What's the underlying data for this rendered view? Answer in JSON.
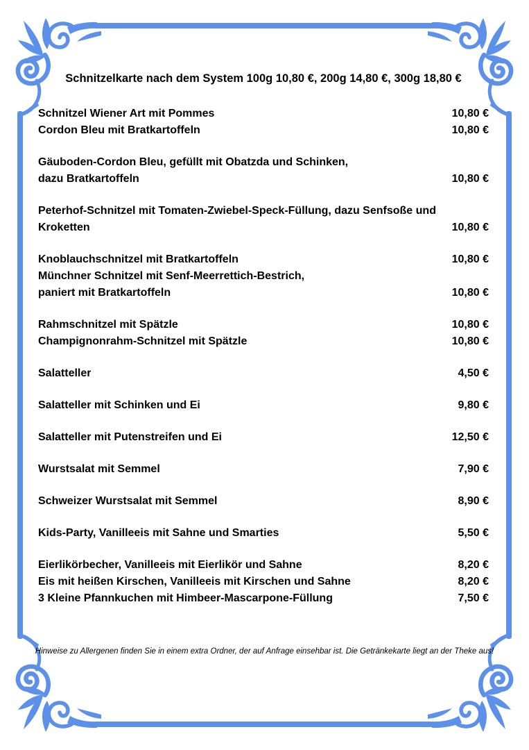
{
  "page": {
    "title": "Schnitzelkarte nach dem System 100g 10,80 €, 200g 14,80 €, 300g 18,80 €",
    "footer": "Hinweise zu Allergenen finden Sie in einem extra Ordner, der auf Anfrage einsehbar ist. Die Getränkekarte liegt an der Theke aus!"
  },
  "theme": {
    "accent_blue": "#5d90e8",
    "text_color": "#000000",
    "background": "#ffffff"
  },
  "icons": [
    "corner-flourish-top-left",
    "corner-flourish-top-right",
    "corner-flourish-bottom-left",
    "corner-flourish-bottom-right"
  ],
  "menu": {
    "currency": "€",
    "groups": [
      {
        "items": [
          {
            "lines": [
              "Schnitzel Wiener Art mit Pommes"
            ],
            "price": "10,80 €"
          },
          {
            "lines": [
              "Cordon Bleu mit Bratkartoffeln"
            ],
            "price": "10,80 €"
          }
        ]
      },
      {
        "items": [
          {
            "lines": [
              "Gäuboden-Cordon Bleu, gefüllt mit Obatzda und Schinken,",
              "dazu Bratkartoffeln"
            ],
            "price": "10,80 €"
          }
        ]
      },
      {
        "items": [
          {
            "lines": [
              "Peterhof-Schnitzel mit Tomaten-Zwiebel-Speck-Füllung, dazu Senfsoße und",
              "Kroketten"
            ],
            "price": "10,80 €"
          }
        ]
      },
      {
        "items": [
          {
            "lines": [
              "Knoblauchschnitzel mit Bratkartoffeln"
            ],
            "price": "10,80 €"
          },
          {
            "lines": [
              "Münchner Schnitzel mit Senf-Meerrettich-Bestrich,",
              "paniert mit Bratkartoffeln"
            ],
            "price": "10,80 €"
          }
        ]
      },
      {
        "items": [
          {
            "lines": [
              "Rahmschnitzel mit Spätzle"
            ],
            "price": "10,80 €"
          },
          {
            "lines": [
              "Champignonrahm-Schnitzel mit Spätzle"
            ],
            "price": "10,80 €"
          }
        ]
      },
      {
        "items": [
          {
            "lines": [
              "Salatteller"
            ],
            "price": "4,50 €"
          }
        ]
      },
      {
        "items": [
          {
            "lines": [
              "Salatteller mit Schinken und Ei"
            ],
            "price": "9,80 €"
          }
        ]
      },
      {
        "items": [
          {
            "lines": [
              "Salatteller mit Putenstreifen und Ei"
            ],
            "price": "12,50 €"
          }
        ]
      },
      {
        "items": [
          {
            "lines": [
              "Wurstsalat mit Semmel"
            ],
            "price": "7,90 €"
          }
        ]
      },
      {
        "items": [
          {
            "lines": [
              "Schweizer Wurstsalat mit Semmel"
            ],
            "price": "8,90 €"
          }
        ]
      },
      {
        "items": [
          {
            "lines": [
              "Kids-Party, Vanilleeis mit Sahne und Smarties"
            ],
            "price": "5,50 €"
          }
        ]
      },
      {
        "items": [
          {
            "lines": [
              "Eierlikörbecher, Vanilleeis mit Eierlikör und Sahne"
            ],
            "price": "8,20 €"
          },
          {
            "lines": [
              "Eis mit heißen Kirschen, Vanilleeis mit Kirschen und Sahne"
            ],
            "price": "8,20 €"
          },
          {
            "lines": [
              "3 Kleine Pfannkuchen mit Himbeer-Mascarpone-Füllung"
            ],
            "price": "7,50 €"
          }
        ]
      }
    ]
  }
}
